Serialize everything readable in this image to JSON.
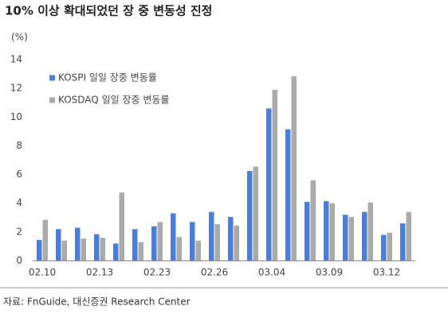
{
  "chart_data": {
    "type": "bar",
    "title": "10% 이상 확대되었던 장 중 변동성 진정",
    "y_unit": "(%)",
    "source": "자료: FnGuide, 대신증권 Research Center",
    "categories": [
      "02.10",
      null,
      null,
      "02.13",
      null,
      null,
      "02.23",
      null,
      null,
      "02.26",
      null,
      null,
      "03.04",
      null,
      null,
      "03.09",
      null,
      null,
      "03.12",
      null
    ],
    "series": [
      {
        "name": "KOSPI 일일 장중 변동률",
        "color": "#4a7fd4",
        "values": [
          1.45,
          2.2,
          2.3,
          1.85,
          1.2,
          2.2,
          2.4,
          3.3,
          2.7,
          3.4,
          3.05,
          6.25,
          10.6,
          9.15,
          4.1,
          4.15,
          3.2,
          3.4,
          1.8,
          2.6
        ]
      },
      {
        "name": "KOSDAQ 일일 장중 변동률",
        "color": "#aaaaaa",
        "values": [
          2.85,
          1.4,
          1.55,
          1.6,
          4.75,
          1.3,
          2.7,
          1.65,
          1.4,
          2.55,
          2.45,
          6.55,
          11.9,
          12.85,
          5.6,
          4.0,
          3.05,
          4.05,
          1.95,
          3.4
        ]
      }
    ],
    "ylim": [
      0,
      14
    ],
    "yticks": [
      0,
      2,
      4,
      6,
      8,
      10,
      12,
      14
    ],
    "grid": false,
    "legend": "upper left"
  }
}
